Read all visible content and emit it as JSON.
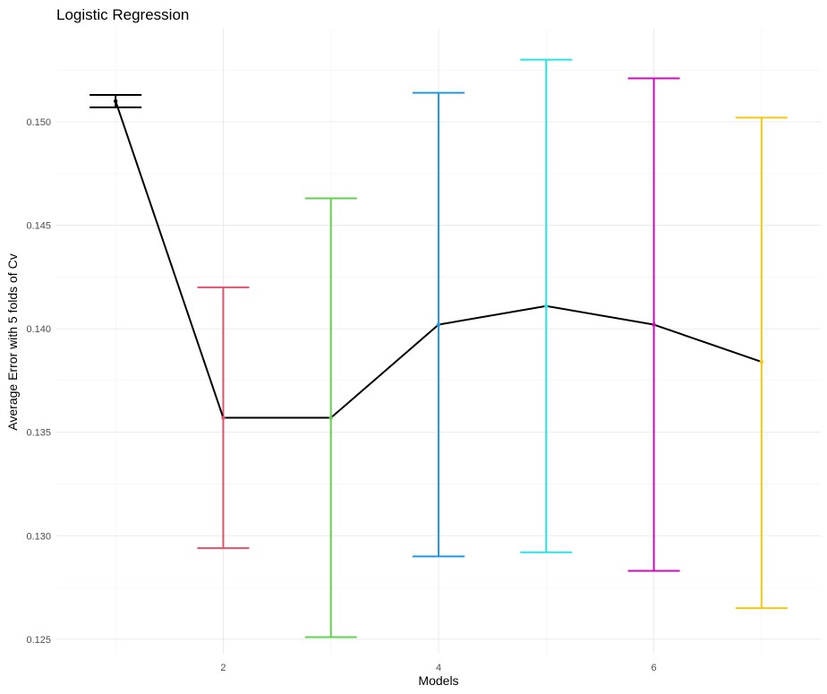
{
  "chart_data": {
    "type": "line",
    "title": "Logistic Regression",
    "xlabel": "Models",
    "ylabel": "Average Error with 5 folds of Cv",
    "xlim": [
      0.45,
      7.55
    ],
    "ylim": [
      0.1243,
      0.1545
    ],
    "x_ticks": [
      2,
      4,
      6
    ],
    "y_ticks": [
      0.125,
      0.13,
      0.135,
      0.14,
      0.145,
      0.15
    ],
    "y_tick_labels": [
      "0.125",
      "0.130",
      "0.135",
      "0.140",
      "0.145",
      "0.150"
    ],
    "grid": true,
    "legend": "none",
    "series": [
      {
        "x": [
          1,
          2,
          3,
          4,
          5,
          6,
          7
        ],
        "y": [
          0.151,
          0.1357,
          0.1357,
          0.1402,
          0.1411,
          0.1402,
          0.1384
        ]
      }
    ],
    "error_bars": [
      {
        "x": 1,
        "lower": 0.1507,
        "upper": 0.1513,
        "color": "#000000"
      },
      {
        "x": 2,
        "lower": 0.1294,
        "upper": 0.142,
        "color": "#DF536B"
      },
      {
        "x": 3,
        "lower": 0.1251,
        "upper": 0.1463,
        "color": "#61D04F"
      },
      {
        "x": 4,
        "lower": 0.129,
        "upper": 0.1514,
        "color": "#2297E6"
      },
      {
        "x": 5,
        "lower": 0.1292,
        "upper": 0.153,
        "color": "#28E2E5"
      },
      {
        "x": 6,
        "lower": 0.1283,
        "upper": 0.1521,
        "color": "#CD0BBC"
      },
      {
        "x": 7,
        "lower": 0.1265,
        "upper": 0.1502,
        "color": "#F5C710"
      }
    ],
    "line_color": "#000000"
  }
}
